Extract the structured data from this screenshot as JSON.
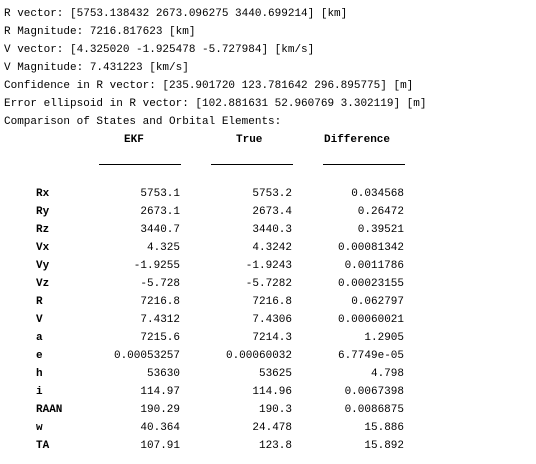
{
  "summary_lines": [
    "R vector: [5753.138432 2673.096275 3440.699214] [km]",
    "R Magnitude: 7216.817623 [km]",
    "V vector: [4.325020 -1.925478 -5.727984] [km/s]",
    "V Magnitude: 7.431223 [km/s]",
    "Confidence in R vector: [235.901720 123.781642 296.895775] [m]",
    "Error ellipsoid in R vector: [102.881631 52.960769 3.302119] [m]",
    "Comparison of States and Orbital Elements:"
  ],
  "table": {
    "headers": [
      "EKF",
      "True",
      "Difference"
    ],
    "rows": [
      {
        "label": "Rx",
        "ekf": "5753.1",
        "true": "5753.2",
        "diff": "0.034568"
      },
      {
        "label": "Ry",
        "ekf": "2673.1",
        "true": "2673.4",
        "diff": "0.26472"
      },
      {
        "label": "Rz",
        "ekf": "3440.7",
        "true": "3440.3",
        "diff": "0.39521"
      },
      {
        "label": "Vx",
        "ekf": "4.325",
        "true": "4.3242",
        "diff": "0.00081342"
      },
      {
        "label": "Vy",
        "ekf": "-1.9255",
        "true": "-1.9243",
        "diff": "0.0011786"
      },
      {
        "label": "Vz",
        "ekf": "-5.728",
        "true": "-5.7282",
        "diff": "0.00023155"
      },
      {
        "label": "R",
        "ekf": "7216.8",
        "true": "7216.8",
        "diff": "0.062797"
      },
      {
        "label": "V",
        "ekf": "7.4312",
        "true": "7.4306",
        "diff": "0.00060021"
      },
      {
        "label": "a",
        "ekf": "7215.6",
        "true": "7214.3",
        "diff": "1.2905"
      },
      {
        "label": "e",
        "ekf": "0.00053257",
        "true": "0.00060032",
        "diff": "6.7749e-05"
      },
      {
        "label": "h",
        "ekf": "53630",
        "true": "53625",
        "diff": "4.798"
      },
      {
        "label": "i",
        "ekf": "114.97",
        "true": "114.96",
        "diff": "0.0067398"
      },
      {
        "label": "RAAN",
        "ekf": "190.29",
        "true": "190.3",
        "diff": "0.0086875"
      },
      {
        "label": "w",
        "ekf": "40.364",
        "true": "24.478",
        "diff": "15.886"
      },
      {
        "label": "TA",
        "ekf": "107.91",
        "true": "123.8",
        "diff": "15.892"
      }
    ]
  }
}
